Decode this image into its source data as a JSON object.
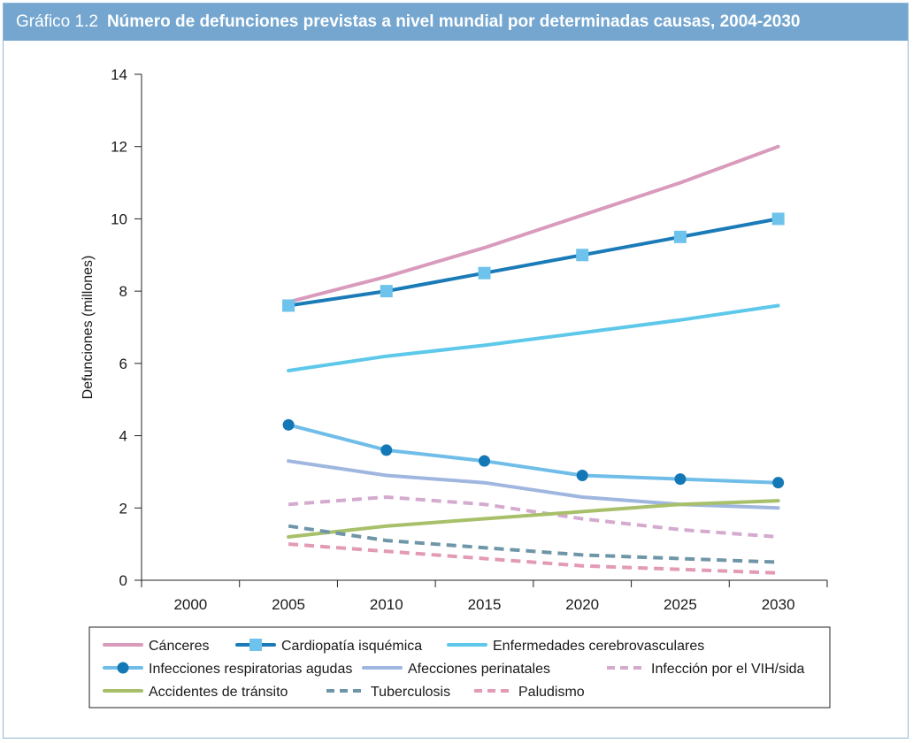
{
  "figure": {
    "label": "Gráfico 1.2",
    "title": "Número de defunciones previstas a nivel mundial por determinadas causas, 2004-2030"
  },
  "chart_data": {
    "type": "line",
    "ylabel": "Defunciones (millones)",
    "xlabel": "",
    "xlim": [
      1997.5,
      2032.5
    ],
    "ylim": [
      0,
      14
    ],
    "x_ticks": [
      2000,
      2005,
      2010,
      2015,
      2020,
      2025,
      2030
    ],
    "y_ticks": [
      0,
      2,
      4,
      6,
      8,
      10,
      12,
      14
    ],
    "grid": false,
    "legend_position": "bottom",
    "series": [
      {
        "name": "Cánceres",
        "color": "#d99bbb",
        "dash": "solid",
        "marker": "none",
        "x": [
          2005,
          2010,
          2015,
          2020,
          2025,
          2030
        ],
        "values": [
          7.7,
          8.4,
          9.2,
          10.1,
          11.0,
          12.0
        ]
      },
      {
        "name": "Cardiopatía isquémica",
        "color": "#1a7bb8",
        "dash": "solid",
        "marker": "square",
        "x": [
          2005,
          2010,
          2015,
          2020,
          2025,
          2030
        ],
        "values": [
          7.6,
          8.0,
          8.5,
          9.0,
          9.5,
          10.0
        ]
      },
      {
        "name": "Enfermedades cerebrovasculares",
        "color": "#5ec8ea",
        "dash": "solid",
        "marker": "none",
        "x": [
          2005,
          2010,
          2015,
          2020,
          2025,
          2030
        ],
        "values": [
          5.8,
          6.2,
          6.5,
          6.85,
          7.2,
          7.6
        ]
      },
      {
        "name": "Infecciones respiratorias agudas",
        "color": "#6fbde8",
        "dash": "solid",
        "marker": "circle",
        "x": [
          2005,
          2010,
          2015,
          2020,
          2025,
          2030
        ],
        "values": [
          4.3,
          3.6,
          3.3,
          2.9,
          2.8,
          2.7
        ]
      },
      {
        "name": "Afecciones perinatales",
        "color": "#9fb6df",
        "dash": "solid",
        "marker": "none",
        "x": [
          2005,
          2010,
          2015,
          2020,
          2025,
          2030
        ],
        "values": [
          3.3,
          2.9,
          2.7,
          2.3,
          2.1,
          2.0
        ]
      },
      {
        "name": "Infección por el VIH/sida",
        "color": "#d4aacf",
        "dash": "dashed",
        "marker": "none",
        "x": [
          2005,
          2010,
          2015,
          2020,
          2025,
          2030
        ],
        "values": [
          2.1,
          2.3,
          2.1,
          1.7,
          1.4,
          1.2
        ]
      },
      {
        "name": "Accidentes de tránsito",
        "color": "#a8c06a",
        "dash": "solid",
        "marker": "none",
        "x": [
          2005,
          2010,
          2015,
          2020,
          2025,
          2030
        ],
        "values": [
          1.2,
          1.5,
          1.7,
          1.9,
          2.1,
          2.2
        ]
      },
      {
        "name": "Tuberculosis",
        "color": "#6f96a8",
        "dash": "dashed",
        "marker": "none",
        "x": [
          2005,
          2010,
          2015,
          2020,
          2025,
          2030
        ],
        "values": [
          1.5,
          1.1,
          0.9,
          0.7,
          0.6,
          0.5
        ]
      },
      {
        "name": "Paludismo",
        "color": "#e39ab6",
        "dash": "dashed",
        "marker": "none",
        "x": [
          2005,
          2010,
          2015,
          2020,
          2025,
          2030
        ],
        "values": [
          1.0,
          0.8,
          0.6,
          0.4,
          0.3,
          0.2
        ]
      }
    ]
  }
}
